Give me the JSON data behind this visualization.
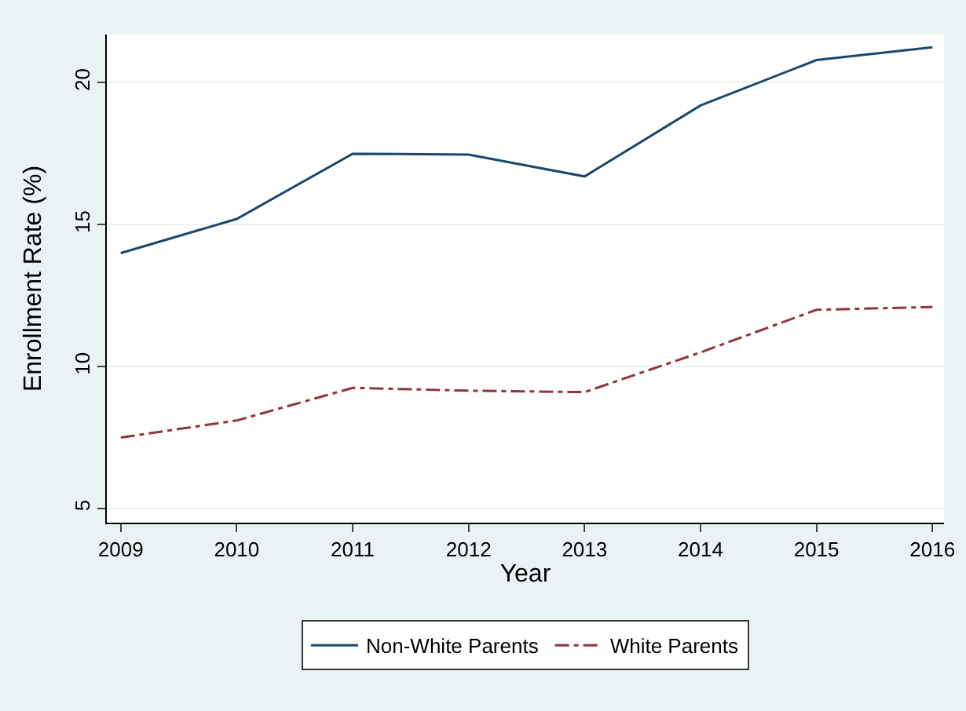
{
  "chart_data": {
    "type": "line",
    "xlabel": "Year",
    "ylabel": "Enrollment Rate (%)",
    "x": [
      2009,
      2010,
      2011,
      2012,
      2013,
      2014,
      2015,
      2016
    ],
    "series": [
      {
        "name": "Non-White Parents",
        "color": "#1a476f",
        "line_style": "solid",
        "values": [
          14.0,
          15.2,
          17.5,
          17.47,
          16.7,
          19.2,
          20.8,
          21.25
        ]
      },
      {
        "name": "White Parents",
        "color": "#90353b",
        "line_style": "dashed",
        "values": [
          7.5,
          8.1,
          9.25,
          9.15,
          9.1,
          10.5,
          12.0,
          12.1
        ]
      }
    ],
    "xlim": [
      2008.88,
      2016.1
    ],
    "xticks": [
      2009,
      2010,
      2011,
      2012,
      2013,
      2014,
      2015,
      2016
    ],
    "ylim": [
      4.5,
      21.7
    ],
    "yticks": [
      5,
      10,
      15,
      20
    ],
    "grid": "y",
    "legend": "bottom",
    "marker": "none"
  }
}
